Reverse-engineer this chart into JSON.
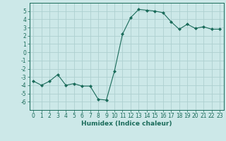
{
  "x": [
    0,
    1,
    2,
    3,
    4,
    5,
    6,
    7,
    8,
    9,
    10,
    11,
    12,
    13,
    14,
    15,
    16,
    17,
    18,
    19,
    20,
    21,
    22,
    23
  ],
  "y": [
    -3.5,
    -4.0,
    -3.5,
    -2.7,
    -4.0,
    -3.8,
    -4.1,
    -4.1,
    -5.7,
    -5.8,
    -2.3,
    2.2,
    4.2,
    5.2,
    5.1,
    5.0,
    4.8,
    3.7,
    2.8,
    3.4,
    2.9,
    3.1,
    2.8,
    2.8
  ],
  "line_color": "#1a6b5a",
  "marker": "D",
  "marker_size": 2.0,
  "bg_color": "#cce8e8",
  "grid_color": "#aed0d0",
  "xlabel": "Humidex (Indice chaleur)",
  "ylabel": "",
  "xlim": [
    -0.5,
    23.5
  ],
  "ylim": [
    -7,
    6
  ],
  "yticks": [
    -6,
    -5,
    -4,
    -3,
    -2,
    -1,
    0,
    1,
    2,
    3,
    4,
    5
  ],
  "xticks": [
    0,
    1,
    2,
    3,
    4,
    5,
    6,
    7,
    8,
    9,
    10,
    11,
    12,
    13,
    14,
    15,
    16,
    17,
    18,
    19,
    20,
    21,
    22,
    23
  ],
  "tick_color": "#1a6b5a",
  "axis_color": "#1a6b5a",
  "label_fontsize": 6.5,
  "tick_fontsize": 5.5
}
